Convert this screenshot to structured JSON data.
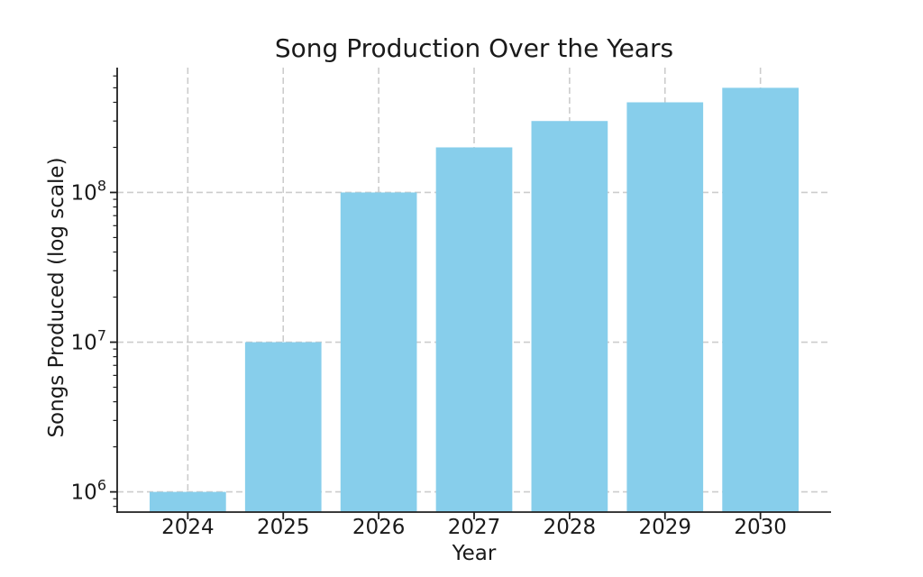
{
  "chart_data": {
    "type": "bar",
    "title": "Song Production Over the Years",
    "xlabel": "Year",
    "ylabel": "Songs Produced (log scale)",
    "categories": [
      "2024",
      "2025",
      "2026",
      "2027",
      "2028",
      "2029",
      "2030"
    ],
    "values": [
      1000000,
      10000000,
      100000000,
      200000000,
      300000000,
      400000000,
      500000000
    ],
    "yscale": "log",
    "ylim": [
      733000,
      682000000
    ],
    "xlim": [
      -0.74,
      6.74
    ],
    "ytick_exponents": [
      6,
      7,
      8
    ],
    "ytick_label_base": "10",
    "bar_width_units": 0.8,
    "grid": "both-dashed",
    "legend": null,
    "colors": {
      "bar": "#87CEEB",
      "grid": "#cccccc",
      "axis": "#1f1f1f",
      "text": "#1a1a1a",
      "background": "#ffffff"
    }
  }
}
